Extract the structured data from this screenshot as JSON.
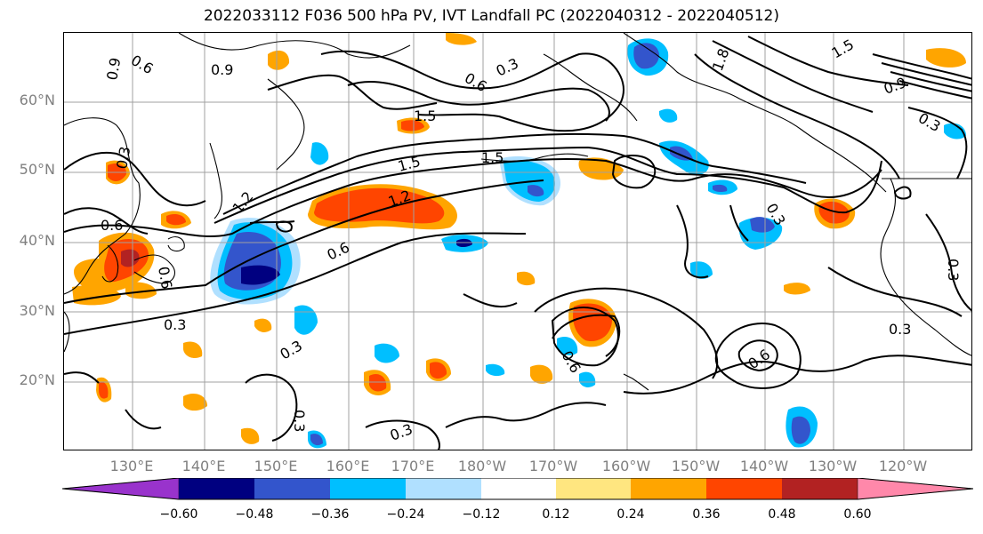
{
  "title": "2022033112 F036 500 hPa PV, IVT Landfall PC (2022040312 - 2022040512)",
  "latitude_labels": [
    "60°N",
    "50°N",
    "40°N",
    "30°N",
    "20°N"
  ],
  "longitude_labels": [
    "130°E",
    "140°E",
    "150°E",
    "160°E",
    "170°E",
    "180°W",
    "170°W",
    "160°W",
    "150°W",
    "140°W",
    "130°W",
    "120°W"
  ],
  "contour_labels": [
    "0.6",
    "0.9",
    "0.9",
    "0.6",
    "0.3",
    "1.5",
    "1.8",
    "1.5",
    "0.9",
    "0.3",
    "0.3",
    "1.5",
    "1.5",
    "1.2",
    "1.2",
    "0.6",
    "0.6",
    "0.3",
    "0.3",
    "0.6",
    "0.6",
    "0.3",
    "0.3",
    "0.3",
    "0.6",
    "0.3",
    "0.3"
  ],
  "colorbar": {
    "ticks": [
      "−0.60",
      "−0.48",
      "−0.36",
      "−0.24",
      "−0.12",
      "0.12",
      "0.24",
      "0.36",
      "0.48",
      "0.60"
    ],
    "colors": [
      "#9933cc",
      "#000080",
      "#3355cc",
      "#00bfff",
      "#b0e0ff",
      "#ffffff",
      "#ffe680",
      "#ffa500",
      "#ff4500",
      "#b22222",
      "#ff88aa"
    ]
  },
  "colors": {
    "gridline": "#a0a0a0",
    "contour": "#000000",
    "coast": "#000000",
    "axis_text": "#808080"
  }
}
